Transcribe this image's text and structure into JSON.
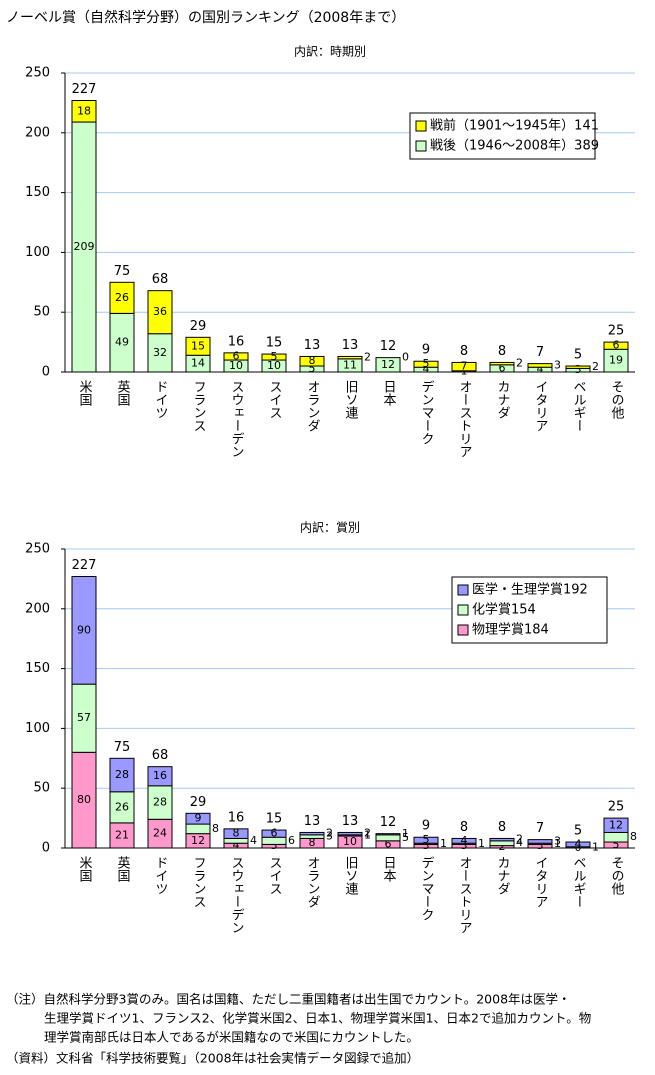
{
  "title": "ノーベル賞（自然科学分野）の国別ランキング（2008年まで）",
  "chart_data": [
    {
      "type": "stacked_bar",
      "subtitle": "内訳：時期別",
      "categories": [
        "米国",
        "英国",
        "ドイツ",
        "フランス",
        "スウェーデン",
        "スイス",
        "オランダ",
        "旧ソ連",
        "日本",
        "デンマーク",
        "オーストリア",
        "カナダ",
        "イタリア",
        "ベルギー",
        "その他"
      ],
      "series": [
        {
          "name": "戦後（1946～2008年）389",
          "color": "#ccffcc",
          "values": [
            209,
            49,
            32,
            14,
            10,
            10,
            5,
            11,
            12,
            4,
            1,
            6,
            4,
            3,
            19
          ]
        },
        {
          "name": "戦前（1901～1945年）141",
          "color": "#ffff00",
          "values": [
            18,
            26,
            36,
            15,
            6,
            5,
            8,
            2,
            0,
            5,
            7,
            2,
            3,
            2,
            6
          ]
        }
      ],
      "totals": [
        227,
        75,
        68,
        29,
        16,
        15,
        13,
        13,
        12,
        9,
        8,
        8,
        7,
        5,
        25
      ],
      "ylim": [
        0,
        250
      ],
      "yticks": [
        0,
        50,
        100,
        150,
        200,
        250
      ],
      "grid": true,
      "legend": "upper right"
    },
    {
      "type": "stacked_bar",
      "subtitle": "内訳：賞別",
      "categories": [
        "米国",
        "英国",
        "ドイツ",
        "フランス",
        "スウェーデン",
        "スイス",
        "オランダ",
        "旧ソ連",
        "日本",
        "デンマーク",
        "オーストリア",
        "カナダ",
        "イタリア",
        "ベルギー",
        "その他"
      ],
      "series": [
        {
          "name": "物理学賞184",
          "color": "#ff99cc",
          "values": [
            80,
            21,
            24,
            12,
            4,
            3,
            8,
            10,
            6,
            3,
            3,
            2,
            3,
            0,
            5
          ]
        },
        {
          "name": "化学賞154",
          "color": "#ccffcc",
          "values": [
            57,
            26,
            28,
            8,
            4,
            6,
            3,
            1,
            5,
            1,
            1,
            4,
            1,
            1,
            8
          ]
        },
        {
          "name": "医学・生理学賞192",
          "color": "#9999ff",
          "values": [
            90,
            28,
            16,
            9,
            8,
            6,
            2,
            2,
            1,
            5,
            4,
            2,
            3,
            4,
            12
          ]
        }
      ],
      "totals": [
        227,
        75,
        68,
        29,
        16,
        15,
        13,
        13,
        12,
        9,
        8,
        8,
        7,
        5,
        25
      ],
      "ylim": [
        0,
        250
      ],
      "yticks": [
        0,
        50,
        100,
        150,
        200,
        250
      ],
      "grid": true,
      "legend": "upper right"
    }
  ],
  "notes": [
    "（注）自然科学分野3賞のみ。国名は国籍、ただし二重国籍者は出生国でカウント。2008年は医学・",
    "生理学賞ドイツ1、フランス2、化学賞米国2、日本1、物理学賞米国1、日本2で追加カウント。物",
    "理学賞南部氏は日本人であるが米国籍なので米国にカウントした。",
    "（資料）文科省「科学技術要覧」（2008年は社会実情データ図録で追加）"
  ]
}
